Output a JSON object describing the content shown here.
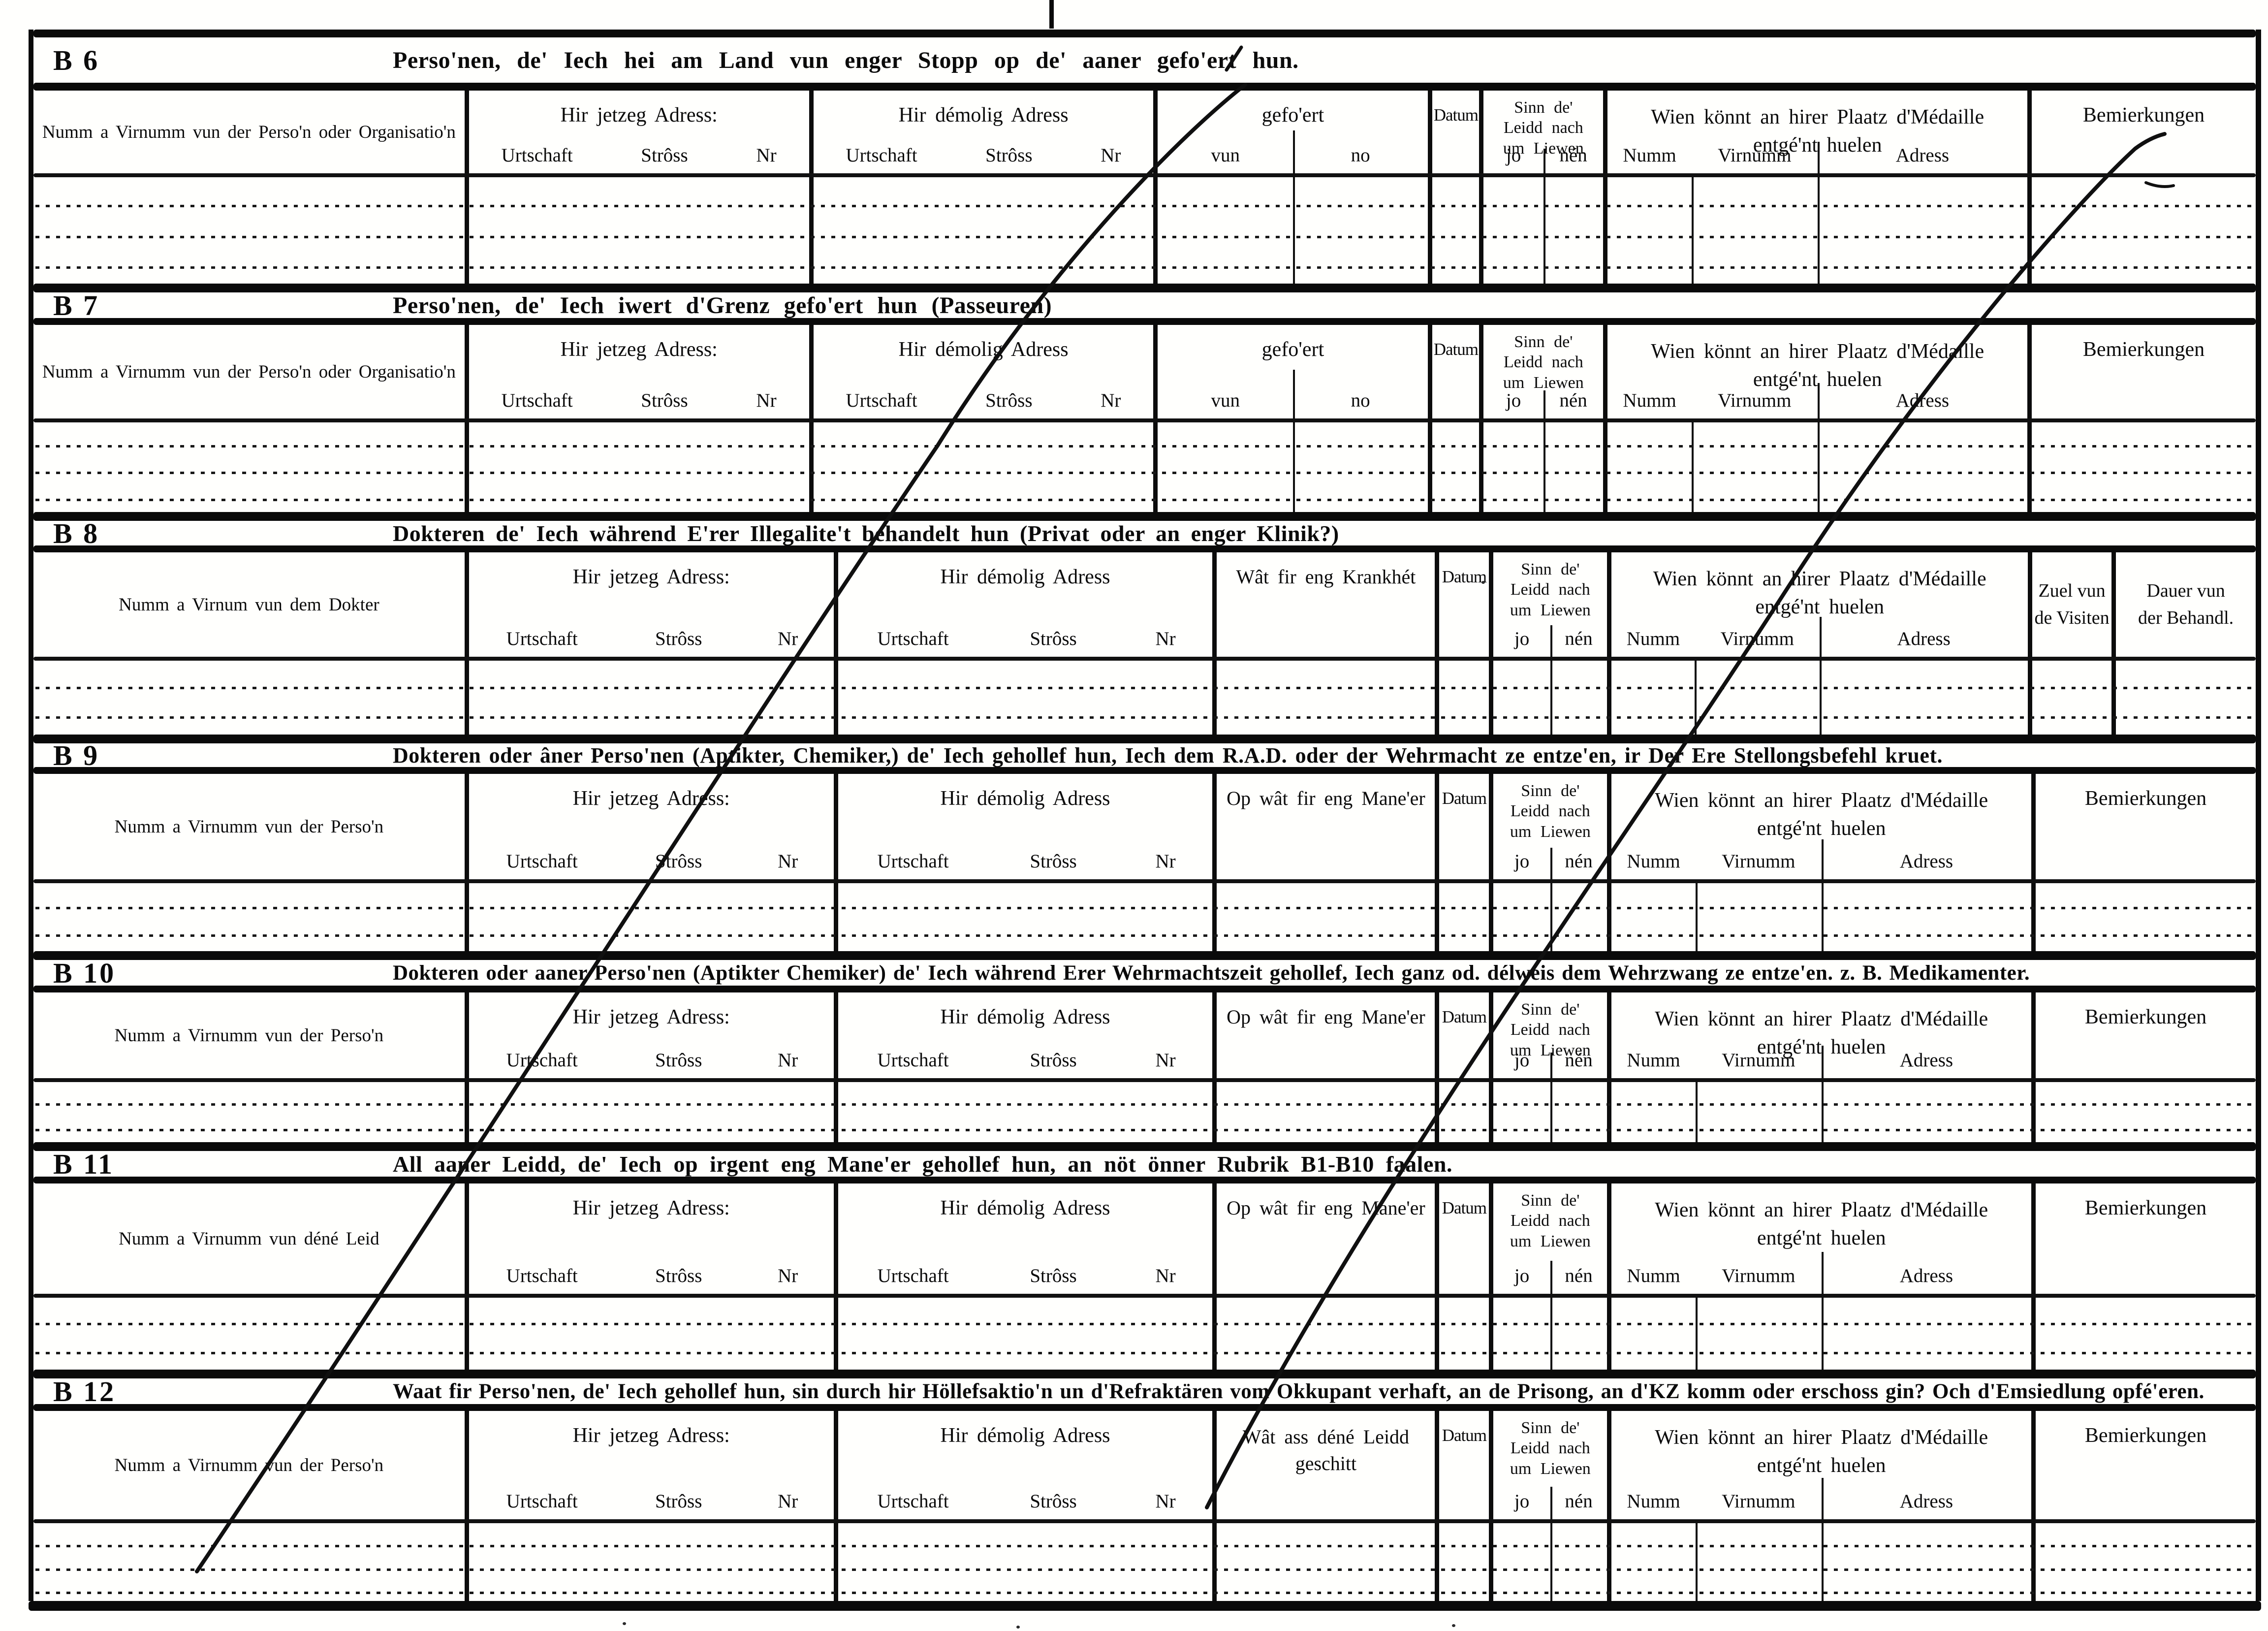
{
  "page": {
    "paper_color": "#fffffd",
    "ink_color": "#0b0b0b"
  },
  "shared": {
    "now_address": "Hir jetzeg Adress:",
    "former_address": "Hir démolig Adress",
    "urtschaft": "Urtschaft",
    "stross": "Strôss",
    "nr": "Nr",
    "gefoert": "gefo'ert",
    "vun": "vun",
    "no": "no",
    "datum": "Datum",
    "alive_lines": [
      "Sinn de'",
      "Leidd nach",
      "um Liewen"
    ],
    "jo": "jo",
    "nen": "nén",
    "medal1": "Wien könnt an hirer Plaatz d'Médaille",
    "medal2": "entgé'nt huelen",
    "numm": "Numm",
    "virnumm": "Virnumm",
    "adress": "Adress",
    "bemierkungen": "Bemierkungen"
  },
  "sections": [
    {
      "label": "B 6",
      "title": "Perso'nen, de' Iech hei am Land vun enger Stopp op de' aaner gefo'ert hun.",
      "col1": "Numm a Virnumm vun der Perso'n oder Organisatio'n"
    },
    {
      "label": "B 7",
      "title": "Perso'nen, de' Iech iwert d'Grenz gefo'ert hun (Passeuren)",
      "col1": "Numm a Virnumm vun der Perso'n oder Organisatio'n"
    },
    {
      "label": "B 8",
      "title": "Dokteren de' Iech während E'rer Illegalite't behandelt hun (Privat oder an enger Klinik?)",
      "col1": "Numm a Virnum vun dem Dokter",
      "col4": "Wât fir eng Krankhét",
      "visits": [
        "Zuel vun",
        "de Visiten"
      ],
      "duration": [
        "Dauer vun",
        "der Behandl."
      ]
    },
    {
      "label": "B 9",
      "title": "Dokteren oder âner Perso'nen (Aptikter, Chemiker,) de' Iech gehollef hun, Iech dem R.A.D. oder der Wehrmacht ze entze'en, ir Der Ere Stellongsbefehl kruet.",
      "col1": "Numm a Virnumm vun der Perso'n",
      "col4": "Op wât fir eng Mane'er"
    },
    {
      "label": "B 10",
      "title": "Dokteren oder aaner Perso'nen (Aptikter Chemiker) de' Iech während Erer Wehrmachtszeit gehollef, Iech ganz od. délweis dem Wehrzwang ze entze'en. z. B. Medikamenter.",
      "col1": "Numm a Virnumm vun der Perso'n",
      "col4": "Op wât fir eng Mane'er"
    },
    {
      "label": "B 11",
      "title": "All aaner Leidd, de' Iech op irgent eng Mane'er gehollef hun, an nöt önner Rubrik B1-B10 faalen.",
      "col1": "Numm a Virnumm vun déné Leid",
      "col4": "Op wât fir eng Mane'er"
    },
    {
      "label": "B 12",
      "title": "Waat fir Perso'nen, de' Iech gehollef hun, sin durch hir Höllefsaktio'n un d'Refraktären vom Okkupant verhaft, an de Prisong, an d'KZ komm oder erschoss gin? Och d'Emsiedlung opfé'eren.",
      "col1": "Numm a Virnumm vun der Perso'n",
      "col4_lines": [
        "Wât ass déné Leidd",
        "geschitt"
      ]
    }
  ]
}
